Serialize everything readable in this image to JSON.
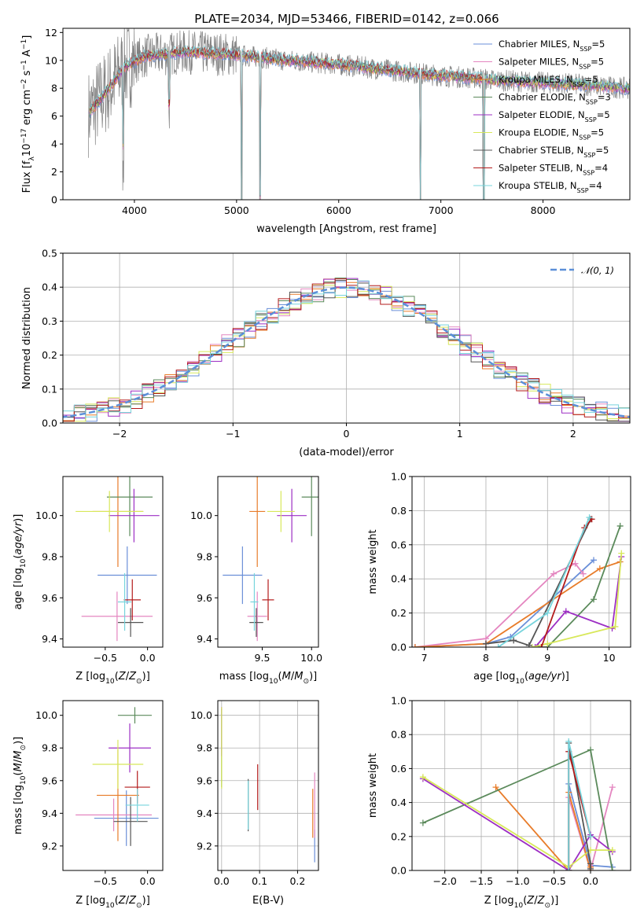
{
  "figure": {
    "title": "PLATE=2034, MJD=53466, FIBERID=0142, z=0.066"
  },
  "series_styles": [
    {
      "name": "Chabrier MILES",
      "nssp": "5",
      "color": "#6a8fd8"
    },
    {
      "name": "Salpeter MILES",
      "nssp": "5",
      "color": "#e486c0"
    },
    {
      "name": "Kroupa MILES",
      "nssp": "5",
      "color": "#e87c2a"
    },
    {
      "name": "Chabrier ELODIE",
      "nssp": "3",
      "color": "#5b8a5b"
    },
    {
      "name": "Salpeter ELODIE",
      "nssp": "5",
      "color": "#9d2fc4"
    },
    {
      "name": "Kroupa ELODIE",
      "nssp": "5",
      "color": "#d8e85a"
    },
    {
      "name": "Chabrier STELIB",
      "nssp": "5",
      "color": "#555555"
    },
    {
      "name": "Salpeter STELIB",
      "nssp": "4",
      "color": "#b31b1b"
    },
    {
      "name": "Kroupa STELIB",
      "nssp": "4",
      "color": "#77d4dc"
    }
  ],
  "chart_data": [
    {
      "id": "spectrum",
      "type": "line",
      "title": "PLATE=2034, MJD=53466, FIBERID=0142, z=0.066",
      "xlabel": "wavelength [Angstrom, rest frame]",
      "ylabel": "Flux [f_λ10^-17 erg cm^-2 s^-1 A^-1]",
      "xlim": [
        3300,
        8850
      ],
      "ylim": [
        0,
        12.3
      ],
      "xticks": [
        4000,
        5000,
        6000,
        7000,
        8000
      ],
      "yticks": [
        0,
        2,
        4,
        6,
        8,
        10,
        12
      ],
      "legend": "upper right",
      "legend_entries": [
        "Chabrier MILES, N_SSP=5",
        "Salpeter MILES, N_SSP=5",
        "Kroupa MILES, N_SSP=5",
        "Chabrier ELODIE, N_SSP=3",
        "Salpeter ELODIE, N_SSP=5",
        "Kroupa ELODIE, N_SSP=5",
        "Chabrier STELIB, N_SSP=5",
        "Salpeter STELIB, N_SSP=4",
        "Kroupa STELIB, N_SSP=4"
      ],
      "data_series": {
        "name": "data",
        "color": "#808080",
        "x_range": [
          3550,
          8850
        ]
      },
      "model_continuum": {
        "x": [
          3550,
          3700,
          3900,
          4100,
          4500,
          5000,
          5500,
          6000,
          6500,
          7000,
          7400,
          7500,
          8000,
          8500,
          8800
        ],
        "y": [
          6.2,
          7.5,
          9.5,
          10.3,
          10.6,
          10.4,
          10.0,
          9.7,
          9.3,
          8.9,
          8.7,
          8.6,
          8.4,
          8.2,
          8.0
        ]
      },
      "lines": [
        {
          "x": 3890,
          "depth": 6
        },
        {
          "x": 4340,
          "depth": 4
        },
        {
          "x": 5050,
          "depth": 12
        },
        {
          "x": 5230,
          "depth": 11
        },
        {
          "x": 6800,
          "depth": 12
        },
        {
          "x": 7420,
          "depth": 12
        }
      ]
    },
    {
      "id": "residuals",
      "type": "histogram",
      "xlabel": "(data-model)/error",
      "ylabel": "Normed distribution",
      "xlim": [
        -2.5,
        2.5
      ],
      "ylim": [
        0,
        0.5
      ],
      "xticks": [
        -2,
        -1,
        0,
        1,
        2
      ],
      "yticks": [
        0.0,
        0.1,
        0.2,
        0.3,
        0.4,
        0.5
      ],
      "grid": true,
      "legend": "upper right",
      "reference": {
        "name": "N(0,1)",
        "label": "𝒩(0, 1)",
        "color": "#5b8fd8"
      },
      "bin_width": 0.1
    },
    {
      "id": "age_vs_Z",
      "type": "errorbar",
      "xlabel": "Z [log10(Z/Z⊙)]",
      "ylabel": "age [log10(age/yr)]",
      "xlim": [
        -1.0,
        0.18
      ],
      "ylim": [
        9.36,
        10.19
      ],
      "xticks": [
        -0.5,
        0.0
      ],
      "yticks": [
        9.4,
        9.6,
        9.8,
        10.0
      ],
      "points": [
        {
          "s": 0,
          "x": -0.24,
          "xe": 0.35,
          "y": 9.71,
          "ye": 0.14
        },
        {
          "s": 1,
          "x": -0.36,
          "xe": 0.42,
          "y": 9.51,
          "ye": 0.12
        },
        {
          "s": 2,
          "x": -0.35,
          "xe": 0.3,
          "y": 10.02,
          "ye": 0.27
        },
        {
          "s": 3,
          "x": -0.21,
          "xe": 0.27,
          "y": 10.09,
          "ye": 0.19
        },
        {
          "s": 4,
          "x": -0.16,
          "xe": 0.3,
          "y": 10.0,
          "ye": 0.13
        },
        {
          "s": 5,
          "x": -0.45,
          "xe": 0.4,
          "y": 10.02,
          "ye": 0.1
        },
        {
          "s": 6,
          "x": -0.2,
          "xe": 0.15,
          "y": 9.48,
          "ye": 0.07
        },
        {
          "s": 7,
          "x": -0.18,
          "xe": 0.1,
          "y": 9.59,
          "ye": 0.1
        },
        {
          "s": 8,
          "x": -0.27,
          "xe": 0.08,
          "y": 9.58,
          "ye": 0.14
        }
      ]
    },
    {
      "id": "age_vs_mass",
      "type": "errorbar",
      "xlabel": "mass [log10(M/M⊙)]",
      "ylabel": "",
      "xlim": [
        9.05,
        10.07
      ],
      "ylim": [
        9.36,
        10.19
      ],
      "xticks": [
        9.5,
        10.0
      ],
      "yticks": [
        9.4,
        9.6,
        9.8,
        10.0
      ],
      "points": [
        {
          "s": 0,
          "x": 9.3,
          "xe": 0.2,
          "y": 9.71,
          "ye": 0.14
        },
        {
          "s": 1,
          "x": 9.45,
          "xe": 0.1,
          "y": 9.51,
          "ye": 0.12
        },
        {
          "s": 2,
          "x": 9.45,
          "xe": 0.08,
          "y": 10.02,
          "ye": 0.27
        },
        {
          "s": 3,
          "x": 10.0,
          "xe": 0.1,
          "y": 10.09,
          "ye": 0.19
        },
        {
          "s": 4,
          "x": 9.8,
          "xe": 0.15,
          "y": 10.0,
          "ye": 0.13
        },
        {
          "s": 5,
          "x": 9.69,
          "xe": 0.14,
          "y": 10.02,
          "ye": 0.1
        },
        {
          "s": 6,
          "x": 9.44,
          "xe": 0.07,
          "y": 9.48,
          "ye": 0.07
        },
        {
          "s": 7,
          "x": 9.56,
          "xe": 0.06,
          "y": 9.59,
          "ye": 0.1
        },
        {
          "s": 8,
          "x": 9.42,
          "xe": 0.04,
          "y": 9.58,
          "ye": 0.14
        }
      ]
    },
    {
      "id": "weight_vs_age",
      "type": "line",
      "xlabel": "age [log10(age/yr)]",
      "ylabel": "mass weight",
      "xlim": [
        6.8,
        10.35
      ],
      "ylim": [
        0,
        1
      ],
      "xticks": [
        7,
        8,
        9,
        10
      ],
      "yticks": [
        0.0,
        0.2,
        0.4,
        0.6,
        0.8,
        1.0
      ],
      "grid": true,
      "series": [
        {
          "s": 0,
          "x": [
            6.85,
            8.0,
            8.4,
            9.75
          ],
          "y": [
            0.0,
            0.02,
            0.06,
            0.51
          ]
        },
        {
          "s": 1,
          "x": [
            6.85,
            8.0,
            9.1,
            9.45,
            9.58
          ],
          "y": [
            0.0,
            0.05,
            0.43,
            0.49,
            0.43
          ]
        },
        {
          "s": 2,
          "x": [
            6.85,
            8.0,
            9.85,
            10.18
          ],
          "y": [
            0.0,
            0.02,
            0.46,
            0.5
          ]
        },
        {
          "s": 3,
          "x": [
            8.85,
            9.0,
            9.75,
            10.18
          ],
          "y": [
            0.0,
            0.0,
            0.28,
            0.71
          ]
        },
        {
          "s": 4,
          "x": [
            8.8,
            9.3,
            10.05,
            10.2
          ],
          "y": [
            0.0,
            0.21,
            0.11,
            0.53
          ]
        },
        {
          "s": 5,
          "x": [
            8.75,
            9.0,
            10.1,
            10.2
          ],
          "y": [
            0.0,
            0.02,
            0.12,
            0.55
          ]
        },
        {
          "s": 6,
          "x": [
            8.0,
            8.45,
            8.7,
            9.7
          ],
          "y": [
            0.02,
            0.04,
            0.01,
            0.75
          ]
        },
        {
          "s": 7,
          "x": [
            8.9,
            9.6,
            9.72
          ],
          "y": [
            0.0,
            0.7,
            0.75
          ]
        },
        {
          "s": 8,
          "x": [
            8.2,
            9.0,
            9.68
          ],
          "y": [
            0.0,
            0.2,
            0.76
          ]
        }
      ]
    },
    {
      "id": "mass_vs_Z",
      "type": "errorbar",
      "xlabel": "Z [log10(Z/Z⊙)]",
      "ylabel": "mass [log10(M/M⊙)]",
      "xlim": [
        -1.0,
        0.18
      ],
      "ylim": [
        9.05,
        10.09
      ],
      "xticks": [
        -0.5,
        0.0
      ],
      "yticks": [
        9.2,
        9.4,
        9.6,
        9.8,
        10.0
      ],
      "points": [
        {
          "s": 0,
          "x": -0.25,
          "xe": 0.38,
          "y": 9.37,
          "ye": 0.17
        },
        {
          "s": 1,
          "x": -0.4,
          "xe": 0.45,
          "y": 9.39,
          "ye": 0.1
        },
        {
          "s": 2,
          "x": -0.35,
          "xe": 0.25,
          "y": 9.51,
          "ye": 0.28
        },
        {
          "s": 3,
          "x": -0.15,
          "xe": 0.2,
          "y": 10.0,
          "ye": 0.05
        },
        {
          "s": 4,
          "x": -0.21,
          "xe": 0.25,
          "y": 9.8,
          "ye": 0.15
        },
        {
          "s": 5,
          "x": -0.35,
          "xe": 0.3,
          "y": 9.7,
          "ye": 0.15
        },
        {
          "s": 6,
          "x": -0.2,
          "xe": 0.2,
          "y": 9.35,
          "ye": 0.15
        },
        {
          "s": 7,
          "x": -0.12,
          "xe": 0.15,
          "y": 9.56,
          "ye": 0.1
        },
        {
          "s": 8,
          "x": -0.12,
          "xe": 0.14,
          "y": 9.45,
          "ye": 0.1
        }
      ]
    },
    {
      "id": "mass_vs_ebv",
      "type": "errorbar",
      "xlabel": "E(B-V)",
      "ylabel": "",
      "xlim": [
        -0.01,
        0.255
      ],
      "ylim": [
        9.05,
        10.09
      ],
      "xticks": [
        0.0,
        0.1,
        0.2
      ],
      "yticks": [
        9.2,
        9.4,
        9.6,
        9.8,
        10.0
      ],
      "grid": true,
      "points": [
        {
          "s": 0,
          "x": 0.245,
          "xe": 0,
          "y": 9.2,
          "ye": 0.1
        },
        {
          "s": 1,
          "x": 0.245,
          "xe": 0,
          "y": 9.45,
          "ye": 0.2
        },
        {
          "s": 2,
          "x": 0.24,
          "xe": 0,
          "y": 9.4,
          "ye": 0.15
        },
        {
          "s": 3,
          "x": 0.0,
          "xe": 0,
          "y": 9.8,
          "ye": 0.24
        },
        {
          "s": 4,
          "x": 0.0,
          "xe": 0,
          "y": 9.9,
          "ye": 0.15
        },
        {
          "s": 5,
          "x": 0.0,
          "xe": 0,
          "y": 9.8,
          "ye": 0.25
        },
        {
          "s": 6,
          "x": 0.07,
          "xe": 0,
          "y": 9.45,
          "ye": 0.16
        },
        {
          "s": 7,
          "x": 0.095,
          "xe": 0,
          "y": 9.56,
          "ye": 0.14
        },
        {
          "s": 8,
          "x": 0.07,
          "xe": 0,
          "y": 9.45,
          "ye": 0.15
        }
      ]
    },
    {
      "id": "weight_vs_Z",
      "type": "line",
      "xlabel": "Z [log10(Z/Z⊙)]",
      "ylabel": "mass weight",
      "xlim": [
        -2.45,
        0.55
      ],
      "ylim": [
        0,
        1
      ],
      "xticks": [
        -2.0,
        -1.5,
        -1.0,
        -0.5,
        0.0
      ],
      "yticks": [
        0.0,
        0.2,
        0.4,
        0.6,
        0.8,
        1.0
      ],
      "grid": true,
      "series": [
        {
          "s": 0,
          "x": [
            -0.3,
            -0.3,
            0.0,
            0.3
          ],
          "y": [
            0.0,
            0.51,
            0.03,
            0.02
          ]
        },
        {
          "s": 1,
          "x": [
            -0.3,
            -0.3,
            0.0,
            0.3
          ],
          "y": [
            0.0,
            0.43,
            0.0,
            0.49
          ]
        },
        {
          "s": 2,
          "x": [
            -1.3,
            -0.3,
            -0.3,
            0.0,
            0.0
          ],
          "y": [
            0.49,
            0.0,
            0.46,
            0.0,
            0.02
          ]
        },
        {
          "s": 3,
          "x": [
            -2.3,
            0.0,
            0.3
          ],
          "y": [
            0.28,
            0.71,
            0.0
          ]
        },
        {
          "s": 4,
          "x": [
            -2.3,
            -0.3,
            0.0,
            0.3
          ],
          "y": [
            0.54,
            0.0,
            0.21,
            0.11
          ]
        },
        {
          "s": 5,
          "x": [
            -2.3,
            -0.3,
            0.0,
            0.3
          ],
          "y": [
            0.55,
            0.02,
            0.12,
            0.12
          ]
        },
        {
          "s": 6,
          "x": [
            -0.3,
            -0.3,
            0.0,
            0.0
          ],
          "y": [
            0.0,
            0.75,
            0.04,
            0.01
          ]
        },
        {
          "s": 7,
          "x": [
            -0.3,
            -0.3,
            0.0
          ],
          "y": [
            0.0,
            0.7,
            0.2
          ]
        },
        {
          "s": 8,
          "x": [
            -0.3,
            -0.3,
            0.0
          ],
          "y": [
            0.0,
            0.76,
            0.2
          ]
        }
      ]
    }
  ]
}
